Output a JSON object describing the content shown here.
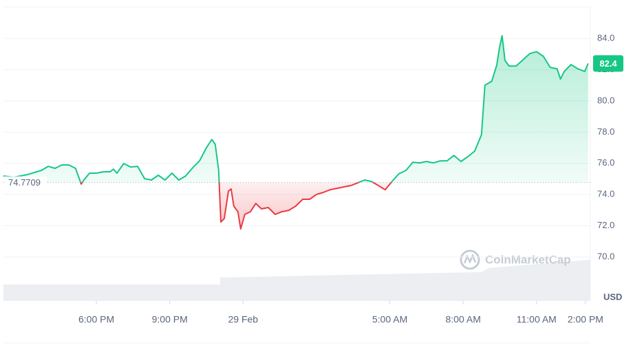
{
  "chart_data": {
    "type": "line",
    "x": [
      0,
      0.42,
      0.98,
      1.55,
      1.83,
      2.11,
      2.39,
      2.67,
      2.95,
      3.18,
      3.29,
      3.52,
      3.8,
      4.08,
      4.36,
      4.5,
      4.64,
      4.92,
      5.2,
      5.49,
      5.77,
      6.05,
      6.33,
      6.61,
      6.89,
      7.17,
      7.45,
      7.74,
      8.02,
      8.3,
      8.52,
      8.66,
      8.8,
      8.89,
      9.03,
      9.2,
      9.31,
      9.42,
      9.59,
      9.7,
      9.87,
      10.1,
      10.32,
      10.55,
      10.83,
      11.11,
      11.39,
      11.67,
      11.95,
      12.24,
      12.52,
      12.8,
      13.08,
      13.36,
      13.64,
      13.92,
      14.21,
      14.49,
      14.77,
      15.05,
      15.33,
      15.61,
      15.89,
      16.17,
      16.46,
      16.74,
      17.02,
      17.3,
      17.58,
      17.86,
      18.14,
      18.42,
      18.71,
      18.99,
      19.27,
      19.55,
      19.69,
      19.97,
      20.17,
      20.28,
      20.39,
      20.51,
      20.68,
      20.96,
      21.24,
      21.52,
      21.8,
      22.08,
      22.36,
      22.64,
      22.78,
      22.93,
      23.21,
      23.49,
      23.77,
      23.91
    ],
    "values": [
      75.19,
      75.11,
      75.28,
      75.55,
      75.81,
      75.68,
      75.9,
      75.9,
      75.68,
      74.67,
      74.93,
      75.37,
      75.37,
      75.46,
      75.46,
      75.63,
      75.37,
      75.99,
      75.77,
      75.81,
      75.02,
      74.93,
      75.24,
      74.93,
      75.37,
      74.93,
      75.19,
      75.72,
      76.16,
      77.0,
      77.53,
      77.22,
      75.55,
      72.24,
      72.46,
      74.22,
      74.36,
      73.26,
      72.9,
      71.8,
      72.73,
      72.9,
      73.43,
      73.08,
      73.17,
      72.73,
      72.9,
      72.99,
      73.26,
      73.7,
      73.7,
      74.0,
      74.14,
      74.31,
      74.4,
      74.49,
      74.58,
      74.75,
      74.93,
      74.84,
      74.58,
      74.31,
      74.84,
      75.33,
      75.55,
      76.07,
      76.03,
      76.12,
      76.03,
      76.16,
      76.16,
      76.51,
      76.12,
      76.43,
      76.78,
      77.84,
      81.01,
      81.27,
      82.28,
      83.38,
      84.18,
      82.59,
      82.24,
      82.24,
      82.63,
      83.03,
      83.16,
      82.86,
      82.15,
      82.06,
      81.4,
      81.89,
      82.33,
      82.06,
      81.89,
      82.4
    ],
    "baseline": 74.7709,
    "current_price": 82.4,
    "currency": "USD",
    "watermark": "CoinMarketCap",
    "colors": {
      "up": "#16c784",
      "down": "#ea3943"
    },
    "xlim": [
      0,
      24
    ],
    "xticks": [
      {
        "value": 3.8,
        "label": "6:00 PM"
      },
      {
        "value": 6.8,
        "label": "9:00 PM"
      },
      {
        "value": 9.8,
        "label": "29 Feb"
      },
      {
        "value": 15.8,
        "label": "5:00 AM"
      },
      {
        "value": 18.8,
        "label": "8:00 AM"
      },
      {
        "value": 21.8,
        "label": "11:00 AM"
      },
      {
        "value": 23.8,
        "label": "2:00 PM"
      }
    ],
    "ylim": [
      67.18,
      86.03
    ],
    "yticks": [
      {
        "value": 70,
        "label": "70.0"
      },
      {
        "value": 72,
        "label": "72.0"
      },
      {
        "value": 74,
        "label": "74.0"
      },
      {
        "value": 76,
        "label": "76.0"
      },
      {
        "value": 78,
        "label": "78.0"
      },
      {
        "value": 80,
        "label": "80.0"
      },
      {
        "value": 82,
        "label": "82.0"
      },
      {
        "value": 84,
        "label": "84.0"
      }
    ],
    "grid": true
  }
}
